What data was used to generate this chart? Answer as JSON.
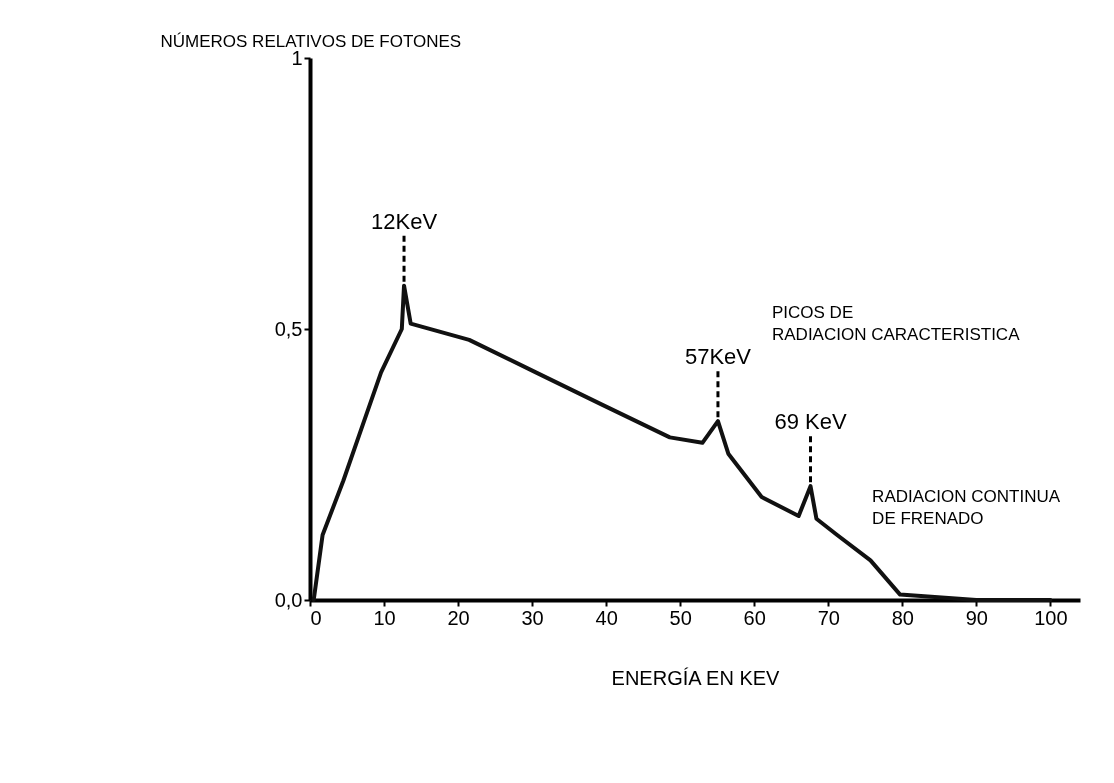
{
  "chart_data": {
    "type": "line",
    "xlabel": "ENERGÍA EN KEV",
    "ylabel": "NÚMEROS RELATIVOS DE FOTONES",
    "x": [
      0.5,
      1.7,
      4.5,
      7.3,
      9.6,
      12.4,
      12.7,
      13.6,
      21.5,
      30.5,
      39.5,
      48.6,
      53,
      55.1,
      56.5,
      61,
      66,
      67.6,
      68.4,
      71.2,
      75.7,
      79.7,
      90,
      100
    ],
    "values": [
      0,
      0.12,
      0.22,
      0.33,
      0.42,
      0.5,
      0.58,
      0.51,
      0.48,
      0.42,
      0.36,
      0.3,
      0.29,
      0.33,
      0.27,
      0.19,
      0.155,
      0.21,
      0.15,
      0.12,
      0.073,
      0.01,
      0,
      0
    ],
    "color": "#111111",
    "xlim": [
      0,
      104
    ],
    "ylim": [
      0,
      1
    ],
    "xticks": [
      0,
      10,
      20,
      30,
      40,
      50,
      60,
      70,
      80,
      90,
      100
    ],
    "yticks": [
      {
        "value": 0,
        "label": "0,0"
      },
      {
        "value": 0.5,
        "label": "0,5"
      },
      1
    ],
    "grid": false,
    "marker": "none",
    "line_style": "solid",
    "annotations": [
      {
        "text": "12KeV",
        "x": 12.7,
        "y": 0.58
      },
      {
        "text": "57KeV",
        "x": 55.1,
        "y": 0.33
      },
      {
        "text": "69 KeV",
        "x": 67.6,
        "y": 0.21
      },
      "PICOS DE RADIACION CARACTERISTICA",
      "RADIACION CONTINUA DE FRENADO"
    ]
  }
}
